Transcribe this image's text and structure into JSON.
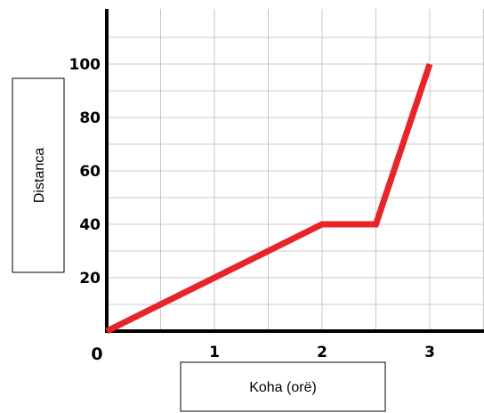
{
  "chart_data": {
    "type": "line",
    "xlabel": "Koha (orë)",
    "ylabel": "Distanca",
    "origin_label": "0",
    "xlim": [
      0,
      3.5
    ],
    "ylim": [
      0,
      100
    ],
    "x_ticks": [
      1,
      2,
      3
    ],
    "y_ticks": [
      20,
      40,
      60,
      80,
      100
    ],
    "grid": true,
    "series": [
      {
        "color": "#e8242b",
        "points": [
          {
            "x": 0,
            "y": 0
          },
          {
            "x": 2,
            "y": 40
          },
          {
            "x": 2.5,
            "y": 40
          },
          {
            "x": 3,
            "y": 100
          }
        ]
      }
    ]
  }
}
